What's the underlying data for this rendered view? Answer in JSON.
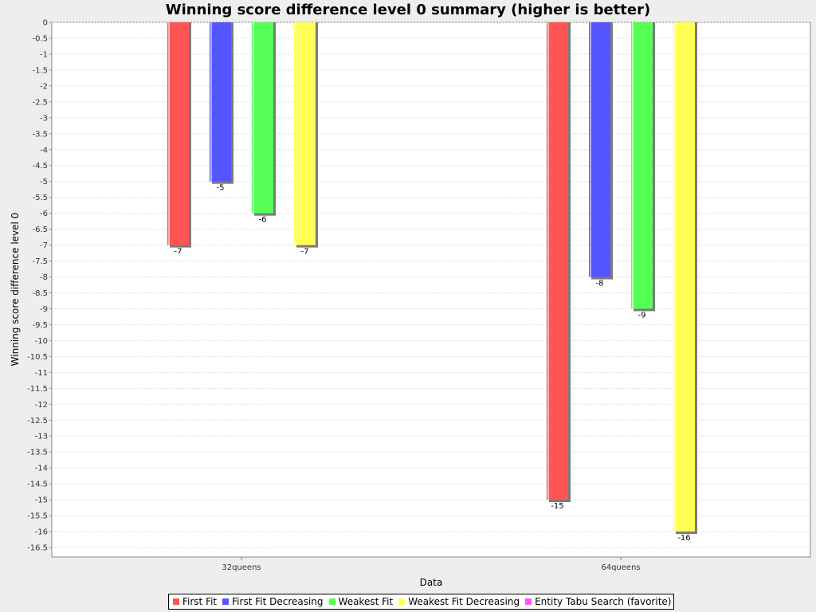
{
  "chart_data": {
    "type": "bar",
    "title": "Winning score difference level 0 summary (higher is better)",
    "xlabel": "Data",
    "ylabel": "Winning score difference level 0",
    "categories": [
      "32queens",
      "64queens"
    ],
    "series": [
      {
        "name": "First Fit",
        "color": "#ff5555",
        "values": [
          -7,
          -15
        ],
        "labels": [
          "-7",
          "-15"
        ]
      },
      {
        "name": "First Fit Decreasing",
        "color": "#5555ff",
        "values": [
          -5,
          -8
        ],
        "labels": [
          "-5",
          "-8"
        ]
      },
      {
        "name": "Weakest Fit",
        "color": "#55ff55",
        "values": [
          -6,
          -9
        ],
        "labels": [
          "-6",
          "-9"
        ]
      },
      {
        "name": "Weakest Fit Decreasing",
        "color": "#ffff55",
        "values": [
          -7,
          -16
        ],
        "labels": [
          "-7",
          "-16"
        ]
      },
      {
        "name": "Entity Tabu Search (favorite)",
        "color": "#ff55ff",
        "values": [
          null,
          null
        ],
        "labels": [
          "",
          ""
        ]
      }
    ],
    "ylim": [
      -16.8,
      0
    ],
    "yticks": [
      0,
      -0.5,
      -1,
      -1.5,
      -2,
      -2.5,
      -3,
      -3.5,
      -4,
      -4.5,
      -5,
      -5.5,
      -6,
      -6.5,
      -7,
      -7.5,
      -8,
      -8.5,
      -9,
      -9.5,
      -10,
      -10.5,
      -11,
      -11.5,
      -12,
      -12.5,
      -13,
      -13.5,
      -14,
      -14.5,
      -15,
      -15.5,
      -16,
      -16.5
    ],
    "grid": true,
    "legend_position": "bottom"
  }
}
